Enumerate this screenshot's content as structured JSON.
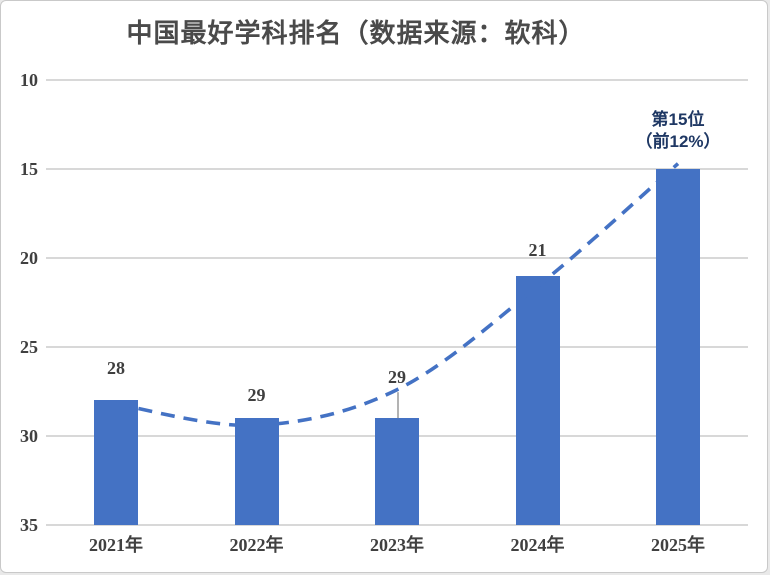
{
  "chart_data": {
    "type": "bar",
    "title": "中国最好学科排名（数据来源：软科）",
    "subtitle": "",
    "categories": [
      "2021年",
      "2022年",
      "2023年",
      "2024年",
      "2025年"
    ],
    "values": [
      28,
      29,
      29,
      21,
      15
    ],
    "data_labels": [
      "28",
      "29",
      "29",
      "21",
      ""
    ],
    "label_gaps": [
      22,
      13,
      31,
      16,
      0
    ],
    "leader_line_index": 2,
    "annotation": {
      "line1": "第15位",
      "line2": "（前12%）",
      "applies_to": "2025年"
    },
    "y_axis": {
      "ticks": [
        10,
        15,
        20,
        25,
        30,
        35
      ],
      "min": 10,
      "max": 35,
      "inverted": true
    },
    "x_axis": {
      "label": ""
    },
    "ylabel": "",
    "xlabel": "",
    "grid": true,
    "legend": false,
    "trendline": {
      "style": "dashed",
      "x_index": [
        0,
        1,
        2,
        3,
        4
      ],
      "values": [
        28.2,
        29.4,
        27.4,
        21.6,
        14.7
      ]
    },
    "colors": {
      "bar": "#4472C4",
      "trendline": "#4472C4",
      "gridline": "#d8d8d8",
      "axis_text": "#404040",
      "annotation_text": "#1F3864",
      "leader_line": "#808080",
      "title_text": "#4a4a4a"
    }
  }
}
